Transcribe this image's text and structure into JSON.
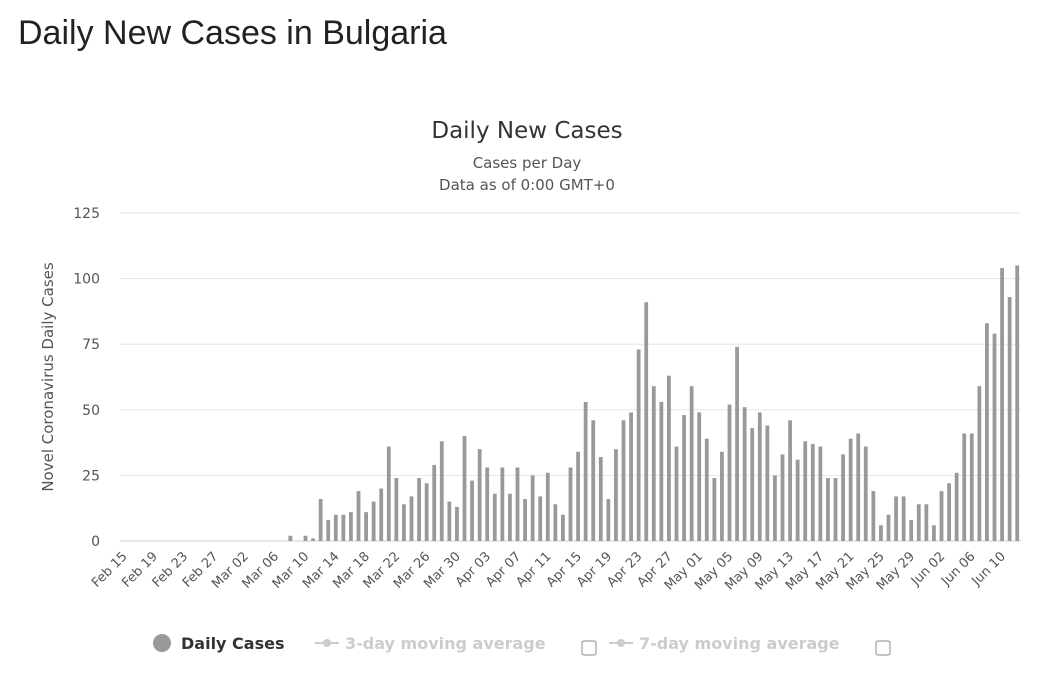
{
  "page_title": "Daily New Cases in Bulgaria",
  "chart_data": {
    "type": "bar",
    "title": "Daily New Cases",
    "subtitle_lines": [
      "Cases per Day",
      "Data as of 0:00 GMT+0"
    ],
    "ylabel": "Novel Coronavirus Daily Cases",
    "xlabel": "",
    "ylim": [
      0,
      125
    ],
    "yticks": [
      0,
      25,
      50,
      75,
      100,
      125
    ],
    "grid": true,
    "bar_color": "#999999",
    "categories": [
      "Feb 15",
      "Feb 16",
      "Feb 17",
      "Feb 18",
      "Feb 19",
      "Feb 20",
      "Feb 21",
      "Feb 22",
      "Feb 23",
      "Feb 24",
      "Feb 25",
      "Feb 26",
      "Feb 27",
      "Feb 28",
      "Feb 29",
      "Mar 01",
      "Mar 02",
      "Mar 03",
      "Mar 04",
      "Mar 05",
      "Mar 06",
      "Mar 07",
      "Mar 08",
      "Mar 09",
      "Mar 10",
      "Mar 11",
      "Mar 12",
      "Mar 13",
      "Mar 14",
      "Mar 15",
      "Mar 16",
      "Mar 17",
      "Mar 18",
      "Mar 19",
      "Mar 20",
      "Mar 21",
      "Mar 22",
      "Mar 23",
      "Mar 24",
      "Mar 25",
      "Mar 26",
      "Mar 27",
      "Mar 28",
      "Mar 29",
      "Mar 30",
      "Mar 31",
      "Apr 01",
      "Apr 02",
      "Apr 03",
      "Apr 04",
      "Apr 05",
      "Apr 06",
      "Apr 07",
      "Apr 08",
      "Apr 09",
      "Apr 10",
      "Apr 11",
      "Apr 12",
      "Apr 13",
      "Apr 14",
      "Apr 15",
      "Apr 16",
      "Apr 17",
      "Apr 18",
      "Apr 19",
      "Apr 20",
      "Apr 21",
      "Apr 22",
      "Apr 23",
      "Apr 24",
      "Apr 25",
      "Apr 26",
      "Apr 27",
      "Apr 28",
      "Apr 29",
      "Apr 30",
      "May 01",
      "May 02",
      "May 03",
      "May 04",
      "May 05",
      "May 06",
      "May 07",
      "May 08",
      "May 09",
      "May 10",
      "May 11",
      "May 12",
      "May 13",
      "May 14",
      "May 15",
      "May 16",
      "May 17",
      "May 18",
      "May 19",
      "May 20",
      "May 21",
      "May 22",
      "May 23",
      "May 24",
      "May 25",
      "May 26",
      "May 27",
      "May 28",
      "May 29",
      "May 30",
      "May 31",
      "Jun 01",
      "Jun 02",
      "Jun 03",
      "Jun 04",
      "Jun 05",
      "Jun 06",
      "Jun 07",
      "Jun 08",
      "Jun 09",
      "Jun 10",
      "Jun 11",
      "Jun 12"
    ],
    "series": [
      {
        "name": "Daily Cases",
        "values": [
          0,
          0,
          0,
          0,
          0,
          0,
          0,
          0,
          0,
          0,
          0,
          0,
          0,
          0,
          0,
          0,
          0,
          0,
          0,
          0,
          0,
          0,
          2,
          0,
          2,
          1,
          16,
          8,
          10,
          10,
          11,
          19,
          11,
          15,
          20,
          36,
          24,
          14,
          17,
          24,
          22,
          29,
          38,
          15,
          13,
          40,
          23,
          35,
          28,
          18,
          28,
          18,
          28,
          16,
          25,
          17,
          26,
          14,
          10,
          28,
          34,
          53,
          46,
          32,
          16,
          35,
          46,
          49,
          73,
          91,
          59,
          53,
          63,
          36,
          48,
          59,
          49,
          39,
          24,
          34,
          52,
          74,
          51,
          43,
          49,
          44,
          25,
          33,
          46,
          31,
          38,
          37,
          36,
          24,
          24,
          33,
          39,
          41,
          36,
          19,
          6,
          10,
          17,
          17,
          8,
          14,
          14,
          6,
          19,
          22,
          26,
          41,
          41,
          59,
          83,
          79,
          104,
          93,
          105
        ]
      }
    ],
    "xtick_labels": [
      "Feb 15",
      "Feb 19",
      "Feb 23",
      "Feb 27",
      "Mar 02",
      "Mar 06",
      "Mar 10",
      "Mar 14",
      "Mar 18",
      "Mar 22",
      "Mar 26",
      "Mar 30",
      "Apr 03",
      "Apr 07",
      "Apr 11",
      "Apr 15",
      "Apr 19",
      "Apr 23",
      "Apr 27",
      "May 01",
      "May 05",
      "May 09",
      "May 13",
      "May 17",
      "May 21",
      "May 25",
      "May 29",
      "Jun 02",
      "Jun 06",
      "Jun 10"
    ],
    "legend": {
      "placement": "bottom",
      "items": [
        {
          "label": "Daily Cases",
          "active": true,
          "color": "#999999"
        },
        {
          "label": "3-day moving average",
          "active": false,
          "color": "#cccccc"
        },
        {
          "label": "7-day moving average",
          "active": false,
          "color": "#cccccc"
        }
      ]
    }
  }
}
